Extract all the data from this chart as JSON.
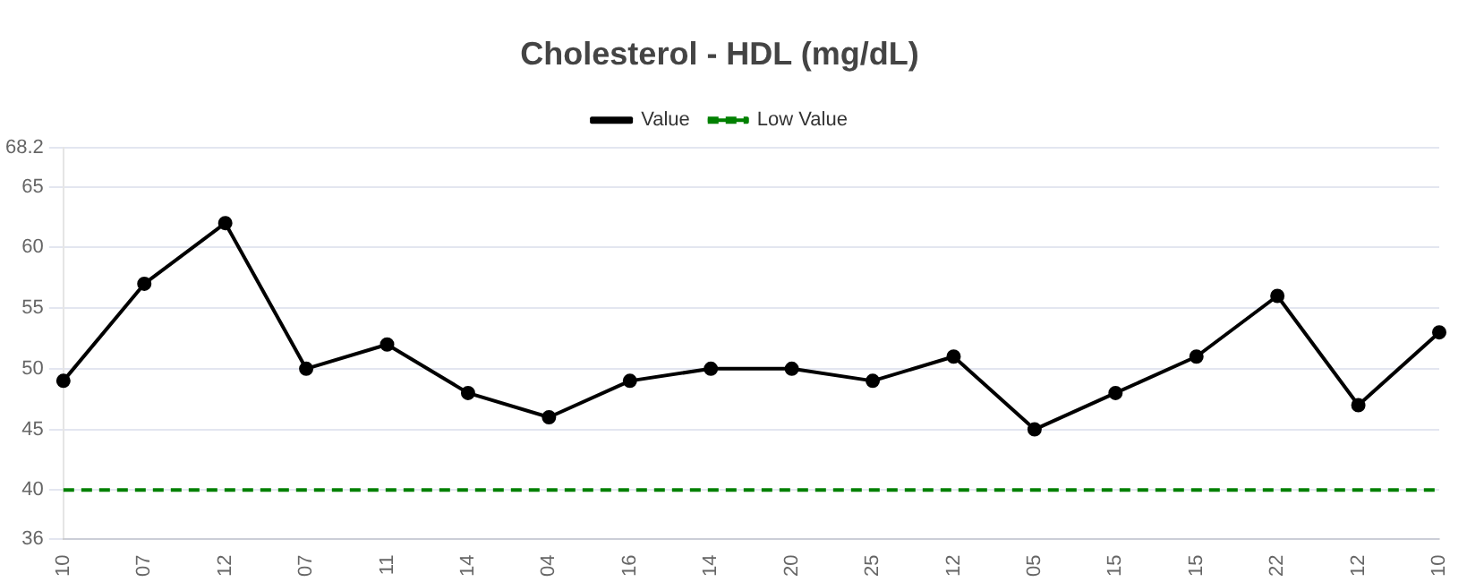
{
  "chart_data": {
    "type": "line",
    "title": "Cholesterol - HDL (mg/dL)",
    "categories": [
      "10",
      "07",
      "12",
      "07",
      "11",
      "14",
      "04",
      "16",
      "14",
      "20",
      "25",
      "12",
      "05",
      "15",
      "15",
      "22",
      "12",
      "10"
    ],
    "series": [
      {
        "name": "Value",
        "color": "#000000",
        "marker": "circle",
        "line_style": "solid",
        "values": [
          49,
          57,
          62,
          50,
          52,
          48,
          46,
          49,
          50,
          50,
          49,
          51,
          45,
          48,
          51,
          56,
          47,
          53
        ]
      },
      {
        "name": "Low Value",
        "color": "#008000",
        "marker": "none",
        "line_style": "dashed",
        "values": [
          40,
          40,
          40,
          40,
          40,
          40,
          40,
          40,
          40,
          40,
          40,
          40,
          40,
          40,
          40,
          40,
          40,
          40
        ]
      }
    ],
    "ylim": [
      36,
      68.2
    ],
    "yticks": [
      36,
      40,
      45,
      50,
      55,
      60,
      65,
      68.2
    ],
    "grid": "y",
    "legend": "top"
  }
}
